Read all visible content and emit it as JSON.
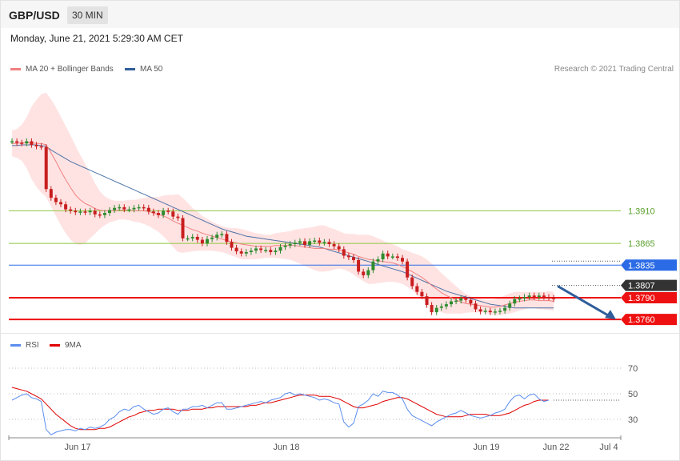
{
  "header": {
    "symbol": "GBP/USD",
    "timeframe": "30 MIN",
    "datetime": "Monday, June 21, 2021 5:29:30 AM CET"
  },
  "legend": {
    "ma20": {
      "label": "MA 20 + Bollinger Bands",
      "color": "#f08080"
    },
    "ma50": {
      "label": "MA 50",
      "color": "#2f5d9a"
    },
    "credit": "Research © 2021 Trading Central"
  },
  "rsi_legend": {
    "rsi": {
      "label": "RSI",
      "color": "#5b8def"
    },
    "ma9": {
      "label": "9MA",
      "color": "#e00000"
    }
  },
  "chart_data": [
    {
      "type": "candlestick",
      "title": "GBP/USD",
      "x_ticks": [
        "Jun 17",
        "Jun 18",
        "Jun 19",
        "Jun 22",
        "Jul 4"
      ],
      "ylim": [
        1.3748,
        1.4085
      ],
      "levels": [
        {
          "label": "1.3910",
          "value": 1.391,
          "color": "#8dc63f"
        },
        {
          "label": "1.3865",
          "value": 1.3865,
          "color": "#8dc63f"
        },
        {
          "label": "1.3835",
          "value": 1.3835,
          "color": "#2b6be6"
        },
        {
          "label": "1.3807",
          "value": 1.3807,
          "color": "#333333"
        },
        {
          "label": "1.3790",
          "value": 1.379,
          "color": "#ee1111"
        },
        {
          "label": "1.3760",
          "value": 1.376,
          "color": "#ee1111"
        }
      ],
      "close": [
        1.4006,
        1.4004,
        1.4003,
        1.4006,
        1.4001,
        1.3999,
        1.3998,
        1.394,
        1.3928,
        1.3922,
        1.3919,
        1.3912,
        1.391,
        1.3908,
        1.3909,
        1.3908,
        1.391,
        1.3905,
        1.3904,
        1.3907,
        1.3911,
        1.3914,
        1.3915,
        1.3912,
        1.3912,
        1.3914,
        1.3915,
        1.3914,
        1.3909,
        1.3907,
        1.3904,
        1.391,
        1.3909,
        1.3902,
        1.39,
        1.3872,
        1.3872,
        1.3874,
        1.387,
        1.3865,
        1.3871,
        1.3873,
        1.3877,
        1.3878,
        1.3867,
        1.3859,
        1.3854,
        1.3851,
        1.3853,
        1.3855,
        1.3858,
        1.3856,
        1.3856,
        1.3853,
        1.3855,
        1.386,
        1.3862,
        1.3864,
        1.3866,
        1.3868,
        1.3863,
        1.3868,
        1.3869,
        1.3866,
        1.3867,
        1.3864,
        1.3861,
        1.3857,
        1.3848,
        1.3846,
        1.3842,
        1.3826,
        1.3821,
        1.3828,
        1.384,
        1.3843,
        1.3851,
        1.3847,
        1.3847,
        1.3845,
        1.384,
        1.3818,
        1.3806,
        1.3798,
        1.3792,
        1.378,
        1.377,
        1.3776,
        1.3778,
        1.3781,
        1.3785,
        1.3786,
        1.3789,
        1.3787,
        1.3782,
        1.3774,
        1.3771,
        1.3772,
        1.377,
        1.3771,
        1.3772,
        1.3776,
        1.3782,
        1.3788,
        1.3789,
        1.3791,
        1.3793,
        1.3791,
        1.3793,
        1.3791,
        1.379,
        1.3788
      ],
      "ma20": [
        1.4003,
        1.4003,
        1.4004,
        1.4004,
        1.4004,
        1.4003,
        1.4003,
        1.4001,
        1.399,
        1.3978,
        1.3965,
        1.3953,
        1.3942,
        1.3932,
        1.3925,
        1.392,
        1.3917,
        1.3913,
        1.3911,
        1.391,
        1.391,
        1.391,
        1.3911,
        1.3911,
        1.3911,
        1.391,
        1.391,
        1.391,
        1.3909,
        1.3907,
        1.3905,
        1.3903,
        1.39,
        1.3896,
        1.3893,
        1.389,
        1.3887,
        1.3884,
        1.3882,
        1.3879,
        1.3877,
        1.3875,
        1.3873,
        1.3871,
        1.3869,
        1.3867,
        1.3866,
        1.3864,
        1.3863,
        1.3862,
        1.3861,
        1.3861,
        1.3861,
        1.3861,
        1.3862,
        1.3862,
        1.3862,
        1.3862,
        1.3862,
        1.3861,
        1.386,
        1.3859,
        1.3858,
        1.3858,
        1.3858,
        1.3857,
        1.3857,
        1.3856,
        1.3854,
        1.3852,
        1.385,
        1.3847,
        1.3845,
        1.3843,
        1.3842,
        1.3841,
        1.384,
        1.3839,
        1.3838,
        1.3836,
        1.3833,
        1.383,
        1.3826,
        1.3822,
        1.3818,
        1.3813,
        1.3807,
        1.3802,
        1.3797,
        1.3793,
        1.379,
        1.3787,
        1.3784,
        1.3782,
        1.3781,
        1.378,
        1.3779,
        1.3778,
        1.3777,
        1.3777,
        1.3778,
        1.378,
        1.3782,
        1.3784,
        1.3785,
        1.3786,
        1.3787,
        1.3787,
        1.3786,
        1.3786,
        1.3786,
        1.3785
      ],
      "ma50": [
        1.4,
        1.4,
        1.4001,
        1.4001,
        1.4001,
        1.4001,
        1.4,
        1.3999,
        1.3994,
        1.399,
        1.3986,
        1.3982,
        1.3978,
        1.3975,
        1.3972,
        1.3969,
        1.3966,
        1.3963,
        1.396,
        1.3957,
        1.3954,
        1.3951,
        1.3948,
        1.3945,
        1.3942,
        1.3939,
        1.3936,
        1.3933,
        1.393,
        1.3927,
        1.3924,
        1.3921,
        1.3918,
        1.3915,
        1.3912,
        1.3909,
        1.3906,
        1.3903,
        1.39,
        1.3897,
        1.3894,
        1.3891,
        1.3888,
        1.3885,
        1.3883,
        1.3881,
        1.3879,
        1.3877,
        1.3875,
        1.3874,
        1.3873,
        1.3872,
        1.3871,
        1.387,
        1.3869,
        1.3868,
        1.3867,
        1.3866,
        1.3865,
        1.3864,
        1.3863,
        1.3862,
        1.3861,
        1.386,
        1.3858,
        1.3856,
        1.3854,
        1.3852,
        1.385,
        1.3848,
        1.3846,
        1.3844,
        1.3842,
        1.384,
        1.3838,
        1.3836,
        1.3834,
        1.3832,
        1.383,
        1.3828,
        1.3826,
        1.3823,
        1.382,
        1.3817,
        1.3814,
        1.3811,
        1.3808,
        1.3805,
        1.3802,
        1.3799,
        1.3797,
        1.3795,
        1.3793,
        1.3791,
        1.3789,
        1.3787,
        1.3785,
        1.3783,
        1.3781,
        1.378,
        1.3779,
        1.3778,
        1.3777,
        1.3776,
        1.3776,
        1.3776,
        1.3776,
        1.3776,
        1.3776,
        1.3776,
        1.3776,
        1.3776
      ],
      "bb_width": [
        0.0018,
        0.002,
        0.0025,
        0.0035,
        0.005,
        0.006,
        0.0068,
        0.0072,
        0.0074,
        0.0075,
        0.0075,
        0.0074,
        0.0072,
        0.0068,
        0.0062,
        0.0055,
        0.0045,
        0.0035,
        0.0026,
        0.002,
        0.0016,
        0.0014,
        0.0013,
        0.0013,
        0.0014,
        0.0015,
        0.0016,
        0.0018,
        0.002,
        0.0022,
        0.0024,
        0.0028,
        0.0032,
        0.0036,
        0.004,
        0.0038,
        0.0034,
        0.003,
        0.0027,
        0.0024,
        0.0022,
        0.002,
        0.0019,
        0.0018,
        0.0018,
        0.0019,
        0.002,
        0.0021,
        0.002,
        0.0019,
        0.0018,
        0.0017,
        0.0016,
        0.0016,
        0.0017,
        0.0018,
        0.0019,
        0.002,
        0.0022,
        0.0024,
        0.0026,
        0.0028,
        0.003,
        0.0032,
        0.0032,
        0.003,
        0.0028,
        0.0026,
        0.0025,
        0.0026,
        0.0028,
        0.003,
        0.0032,
        0.0034,
        0.0033,
        0.0031,
        0.0029,
        0.0027,
        0.0026,
        0.0025,
        0.0024,
        0.0025,
        0.0026,
        0.0028,
        0.0029,
        0.003,
        0.003,
        0.0029,
        0.0027,
        0.0025,
        0.0022,
        0.0019,
        0.0016,
        0.0013,
        0.0011,
        0.001,
        0.0009,
        0.0009,
        0.001,
        0.0011,
        0.0012,
        0.0013,
        0.0014,
        0.0014,
        0.0013,
        0.0012,
        0.0011,
        0.0011,
        0.0012,
        0.0012,
        0.0013,
        0.0013
      ],
      "projection": {
        "from": 1.3806,
        "to": 1.376
      }
    },
    {
      "type": "line",
      "title": "RSI",
      "ylim": [
        20,
        80
      ],
      "y_ticks": [
        30,
        50,
        70
      ],
      "rsi": [
        45,
        47,
        49,
        50,
        47,
        46,
        44,
        22,
        18,
        20,
        21,
        22,
        22,
        21,
        23,
        22,
        24,
        23,
        24,
        26,
        30,
        32,
        36,
        38,
        37,
        40,
        41,
        38,
        36,
        34,
        35,
        38,
        39,
        36,
        34,
        38,
        38,
        40,
        40,
        41,
        39,
        41,
        43,
        43,
        38,
        38,
        39,
        40,
        41,
        42,
        43,
        44,
        43,
        45,
        46,
        47,
        50,
        51,
        49,
        50,
        49,
        48,
        47,
        45,
        46,
        45,
        43,
        42,
        28,
        24,
        27,
        40,
        42,
        45,
        50,
        48,
        52,
        51,
        51,
        49,
        46,
        38,
        33,
        31,
        29,
        27,
        25,
        28,
        30,
        32,
        34,
        35,
        37,
        35,
        33,
        32,
        31,
        32,
        33,
        35,
        36,
        38,
        44,
        48,
        49,
        46,
        49,
        50,
        46,
        44,
        45
      ],
      "ma9": [
        55,
        54,
        53,
        52,
        50,
        48,
        46,
        42,
        38,
        34,
        31,
        28,
        25,
        23,
        22,
        22,
        22,
        22,
        23,
        23,
        24,
        26,
        28,
        30,
        32,
        33,
        35,
        36,
        37,
        37,
        38,
        38,
        38,
        38,
        37,
        37,
        37,
        38,
        38,
        38,
        39,
        39,
        40,
        40,
        40,
        40,
        40,
        40,
        40,
        41,
        41,
        42,
        43,
        43,
        44,
        45,
        46,
        47,
        48,
        49,
        49,
        49,
        49,
        48,
        48,
        48,
        47,
        46,
        44,
        42,
        40,
        39,
        39,
        40,
        41,
        42,
        44,
        45,
        46,
        47,
        47,
        46,
        44,
        42,
        40,
        38,
        36,
        34,
        33,
        32,
        32,
        32,
        32,
        33,
        34,
        34,
        34,
        34,
        33,
        33,
        33,
        34,
        35,
        37,
        39,
        41,
        42,
        44,
        45,
        45,
        45
      ]
    }
  ]
}
